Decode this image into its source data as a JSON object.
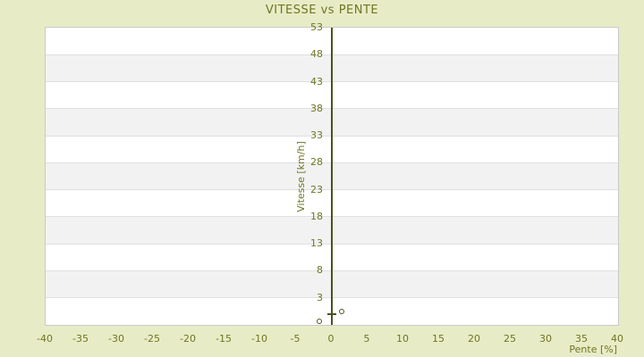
{
  "page": {
    "background": "#e8ecc6"
  },
  "colors": {
    "background": "#e8ecc6",
    "text_olive": "#6f7523",
    "axis_dark_olive": "#4d521b",
    "band_white": "#ffffff",
    "band_gray": "#f2f2f2",
    "gridline": "#e0e0e0",
    "plot_border": "#c9c9c9",
    "marker": "#4d521b"
  },
  "chart_data": {
    "type": "scatter",
    "title": "VITESSE vs PENTE",
    "xlabel": "Pente [%]",
    "ylabel": "Vitesse [km/h]",
    "xlim": [
      -40,
      40
    ],
    "ylim": [
      -2,
      53
    ],
    "x_tick_interval": 5,
    "x_ticks": [
      -40,
      -35,
      -30,
      -25,
      -20,
      -15,
      -10,
      -5,
      0,
      5,
      10,
      15,
      20,
      25,
      30,
      35,
      40
    ],
    "y_tick_interval": 5,
    "y_ticks": [
      53,
      48,
      43,
      38,
      33,
      28,
      23,
      18,
      13,
      8,
      3
    ],
    "axis_at_x": 0,
    "grid": "horizontal-alternating-bands",
    "legend": "none",
    "series": [
      {
        "name": "points",
        "marker": "open-circle",
        "points": [
          {
            "x": -1.7,
            "y": -1.4
          },
          {
            "x": 1.4,
            "y": 0.4
          }
        ]
      },
      {
        "name": "origin-dash",
        "marker": "dash",
        "points": [
          {
            "x": 0,
            "y": 0
          }
        ]
      }
    ]
  }
}
